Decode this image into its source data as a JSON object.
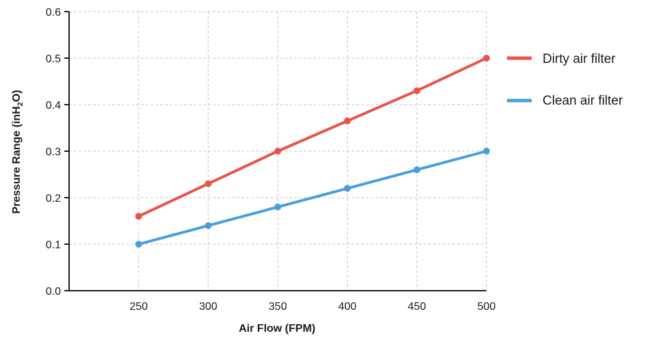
{
  "chart_data": {
    "type": "line",
    "x": [
      250,
      300,
      350,
      400,
      450,
      500
    ],
    "series": [
      {
        "name": "Dirty air filter",
        "values": [
          0.16,
          0.23,
          0.3,
          0.365,
          0.43,
          0.5
        ],
        "color": "#e8534a"
      },
      {
        "name": "Clean air filter",
        "values": [
          0.1,
          0.14,
          0.18,
          0.22,
          0.26,
          0.3
        ],
        "color": "#4a9fd8"
      }
    ],
    "xlabel": "Air Flow (FPM)",
    "ylabel": {
      "main": "Pressure Range (inH",
      "sub": "2",
      "end": "O)"
    },
    "xlim": [
      200,
      500
    ],
    "ylim": [
      0.0,
      0.6
    ],
    "xticks": [
      250,
      300,
      350,
      400,
      450,
      500
    ],
    "yticks": [
      "0.0",
      "0.1",
      "0.2",
      "0.3",
      "0.4",
      "0.5",
      "0.6"
    ],
    "grid": true,
    "legend_position": "right"
  }
}
